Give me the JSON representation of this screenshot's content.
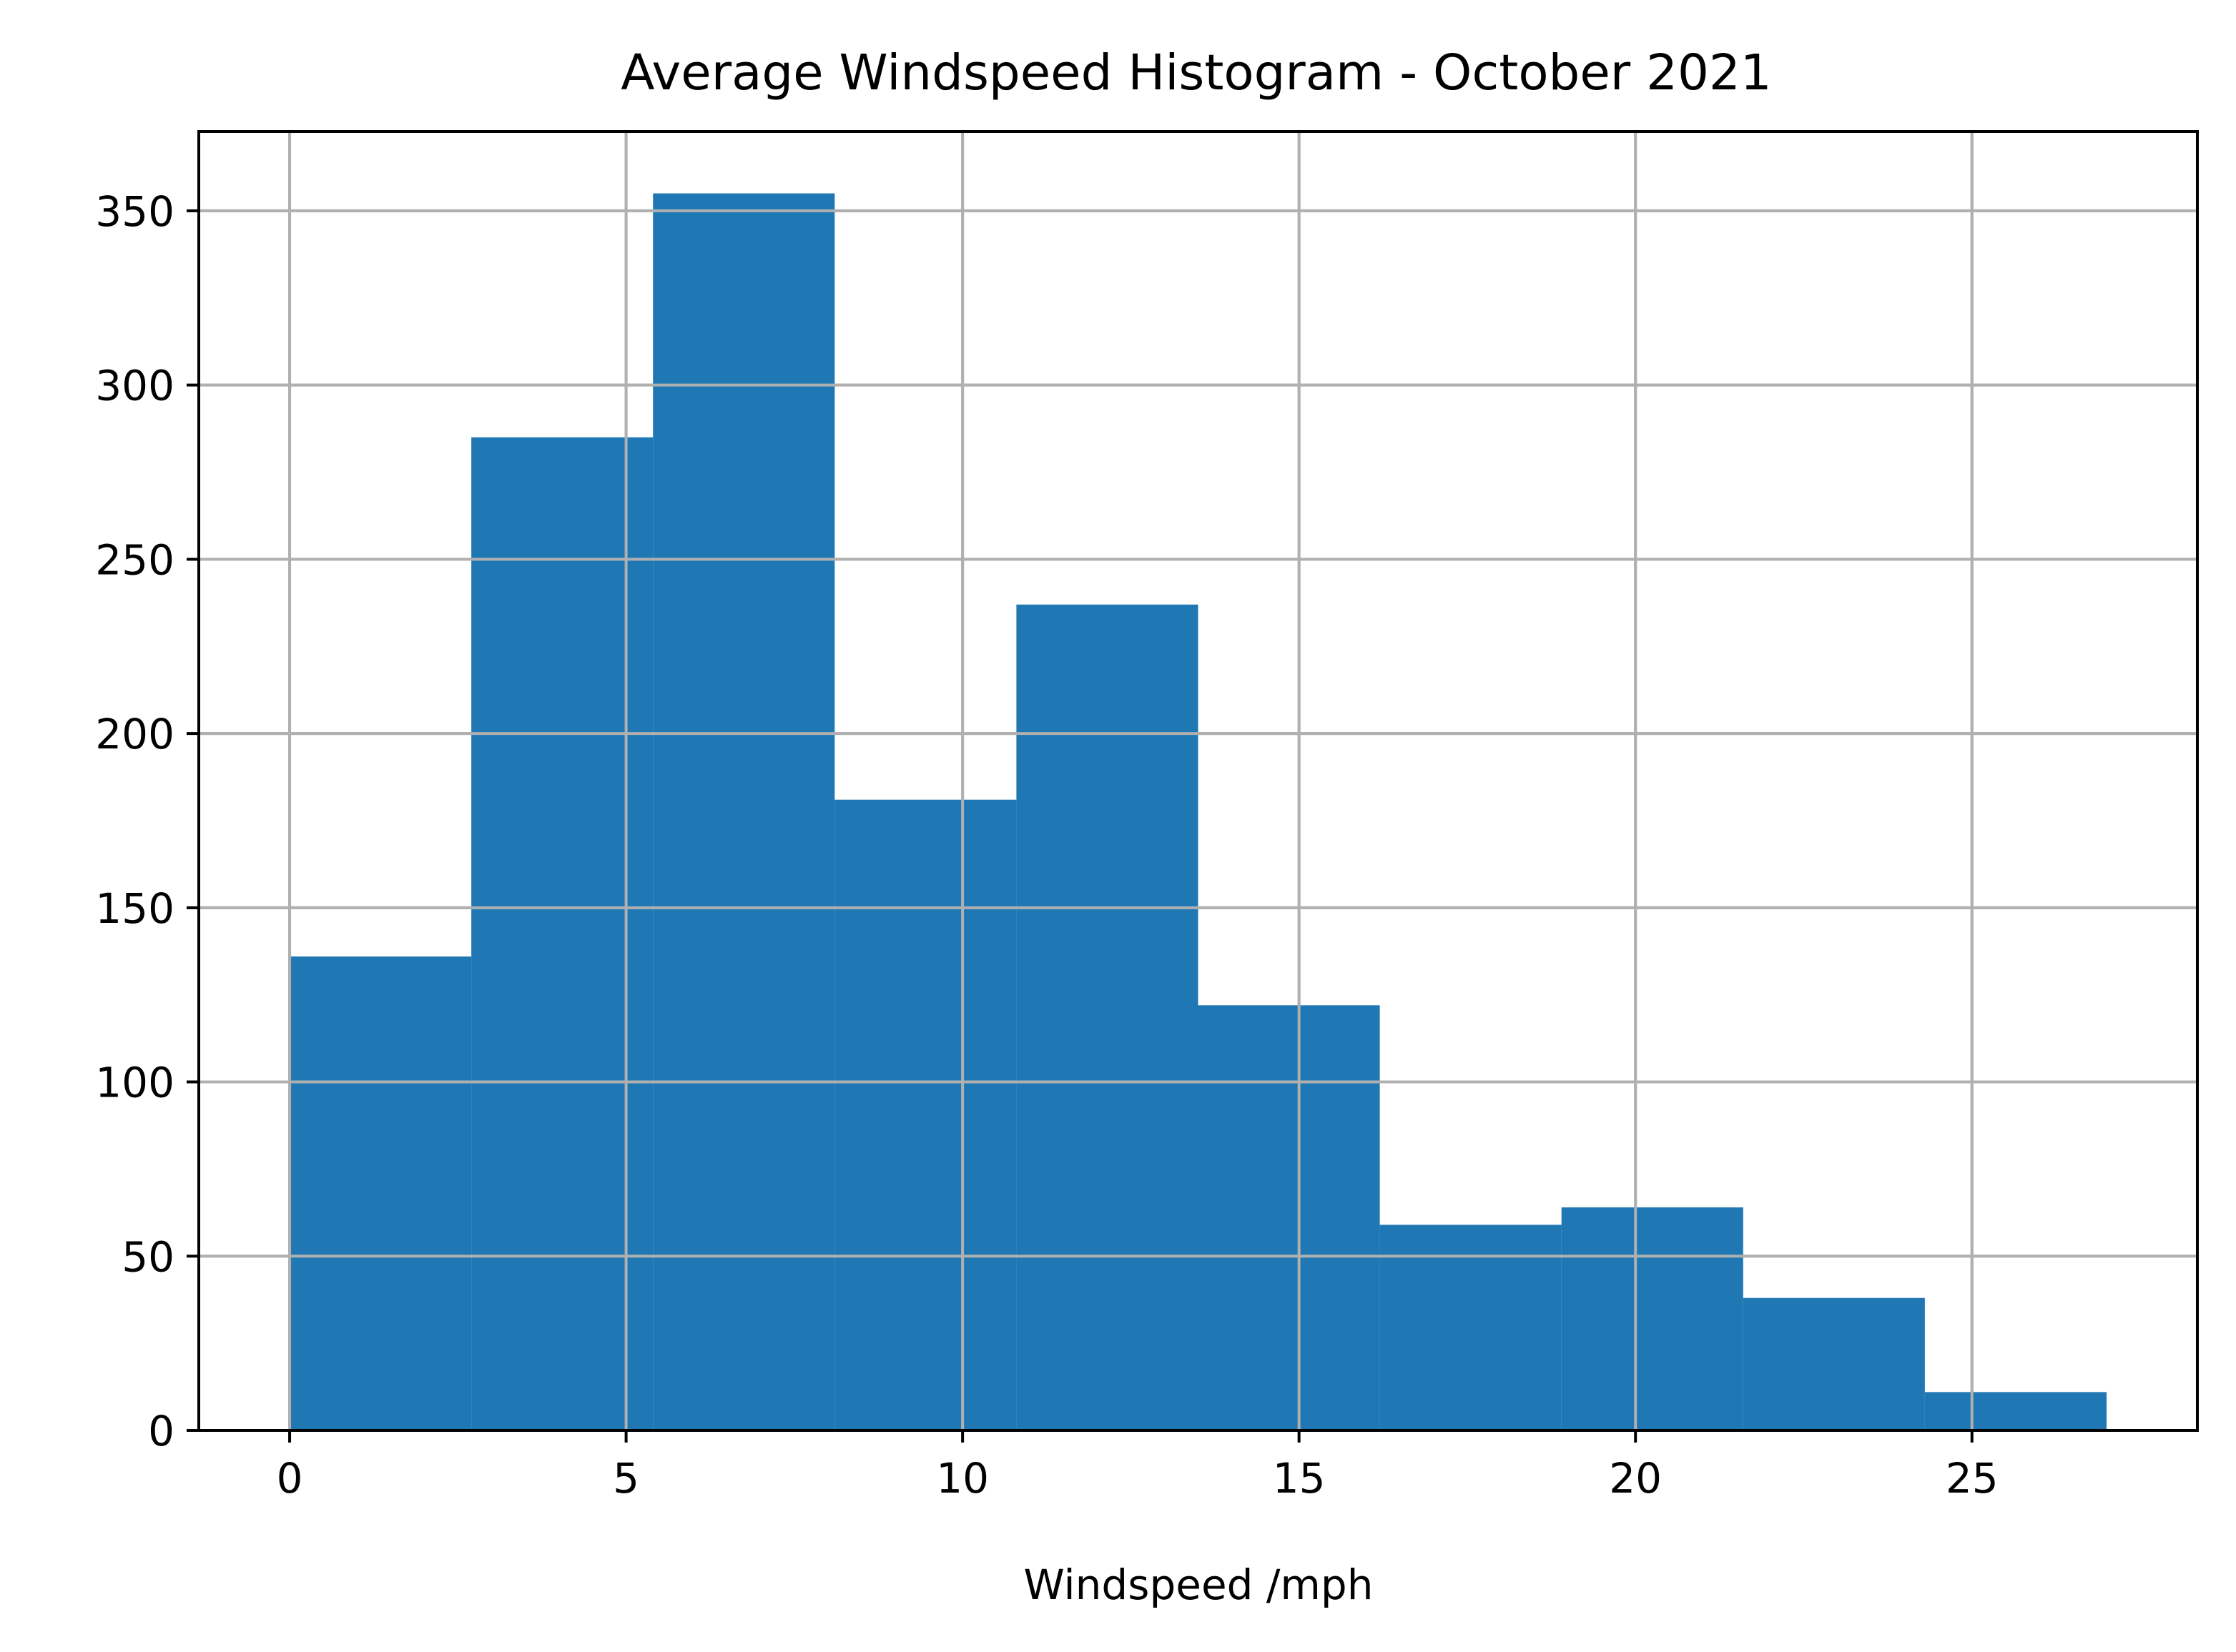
{
  "chart_data": {
    "type": "bar",
    "title": "Average Windspeed Histogram - October 2021",
    "xlabel": "Windspeed /mph",
    "ylabel": "",
    "bins": [
      {
        "x0": 0.0,
        "x1": 2.7,
        "count": 136
      },
      {
        "x0": 2.7,
        "x1": 5.4,
        "count": 285
      },
      {
        "x0": 5.4,
        "x1": 8.1,
        "count": 355
      },
      {
        "x0": 8.1,
        "x1": 10.8,
        "count": 181
      },
      {
        "x0": 10.8,
        "x1": 13.5,
        "count": 237
      },
      {
        "x0": 13.5,
        "x1": 16.2,
        "count": 122
      },
      {
        "x0": 16.2,
        "x1": 18.9,
        "count": 59
      },
      {
        "x0": 18.9,
        "x1": 21.6,
        "count": 64
      },
      {
        "x0": 21.6,
        "x1": 24.3,
        "count": 38
      },
      {
        "x0": 24.3,
        "x1": 27.0,
        "count": 11
      }
    ],
    "xlim": [
      -1.35,
      28.35
    ],
    "ylim": [
      0,
      372.75
    ],
    "x_ticks": [
      "0",
      "5",
      "10",
      "15",
      "20",
      "25"
    ],
    "y_ticks": [
      "0",
      "50",
      "100",
      "150",
      "200",
      "250",
      "300",
      "350"
    ],
    "grid": true,
    "bar_color": "#1f77b4",
    "grid_color": "#b0b0b0"
  }
}
